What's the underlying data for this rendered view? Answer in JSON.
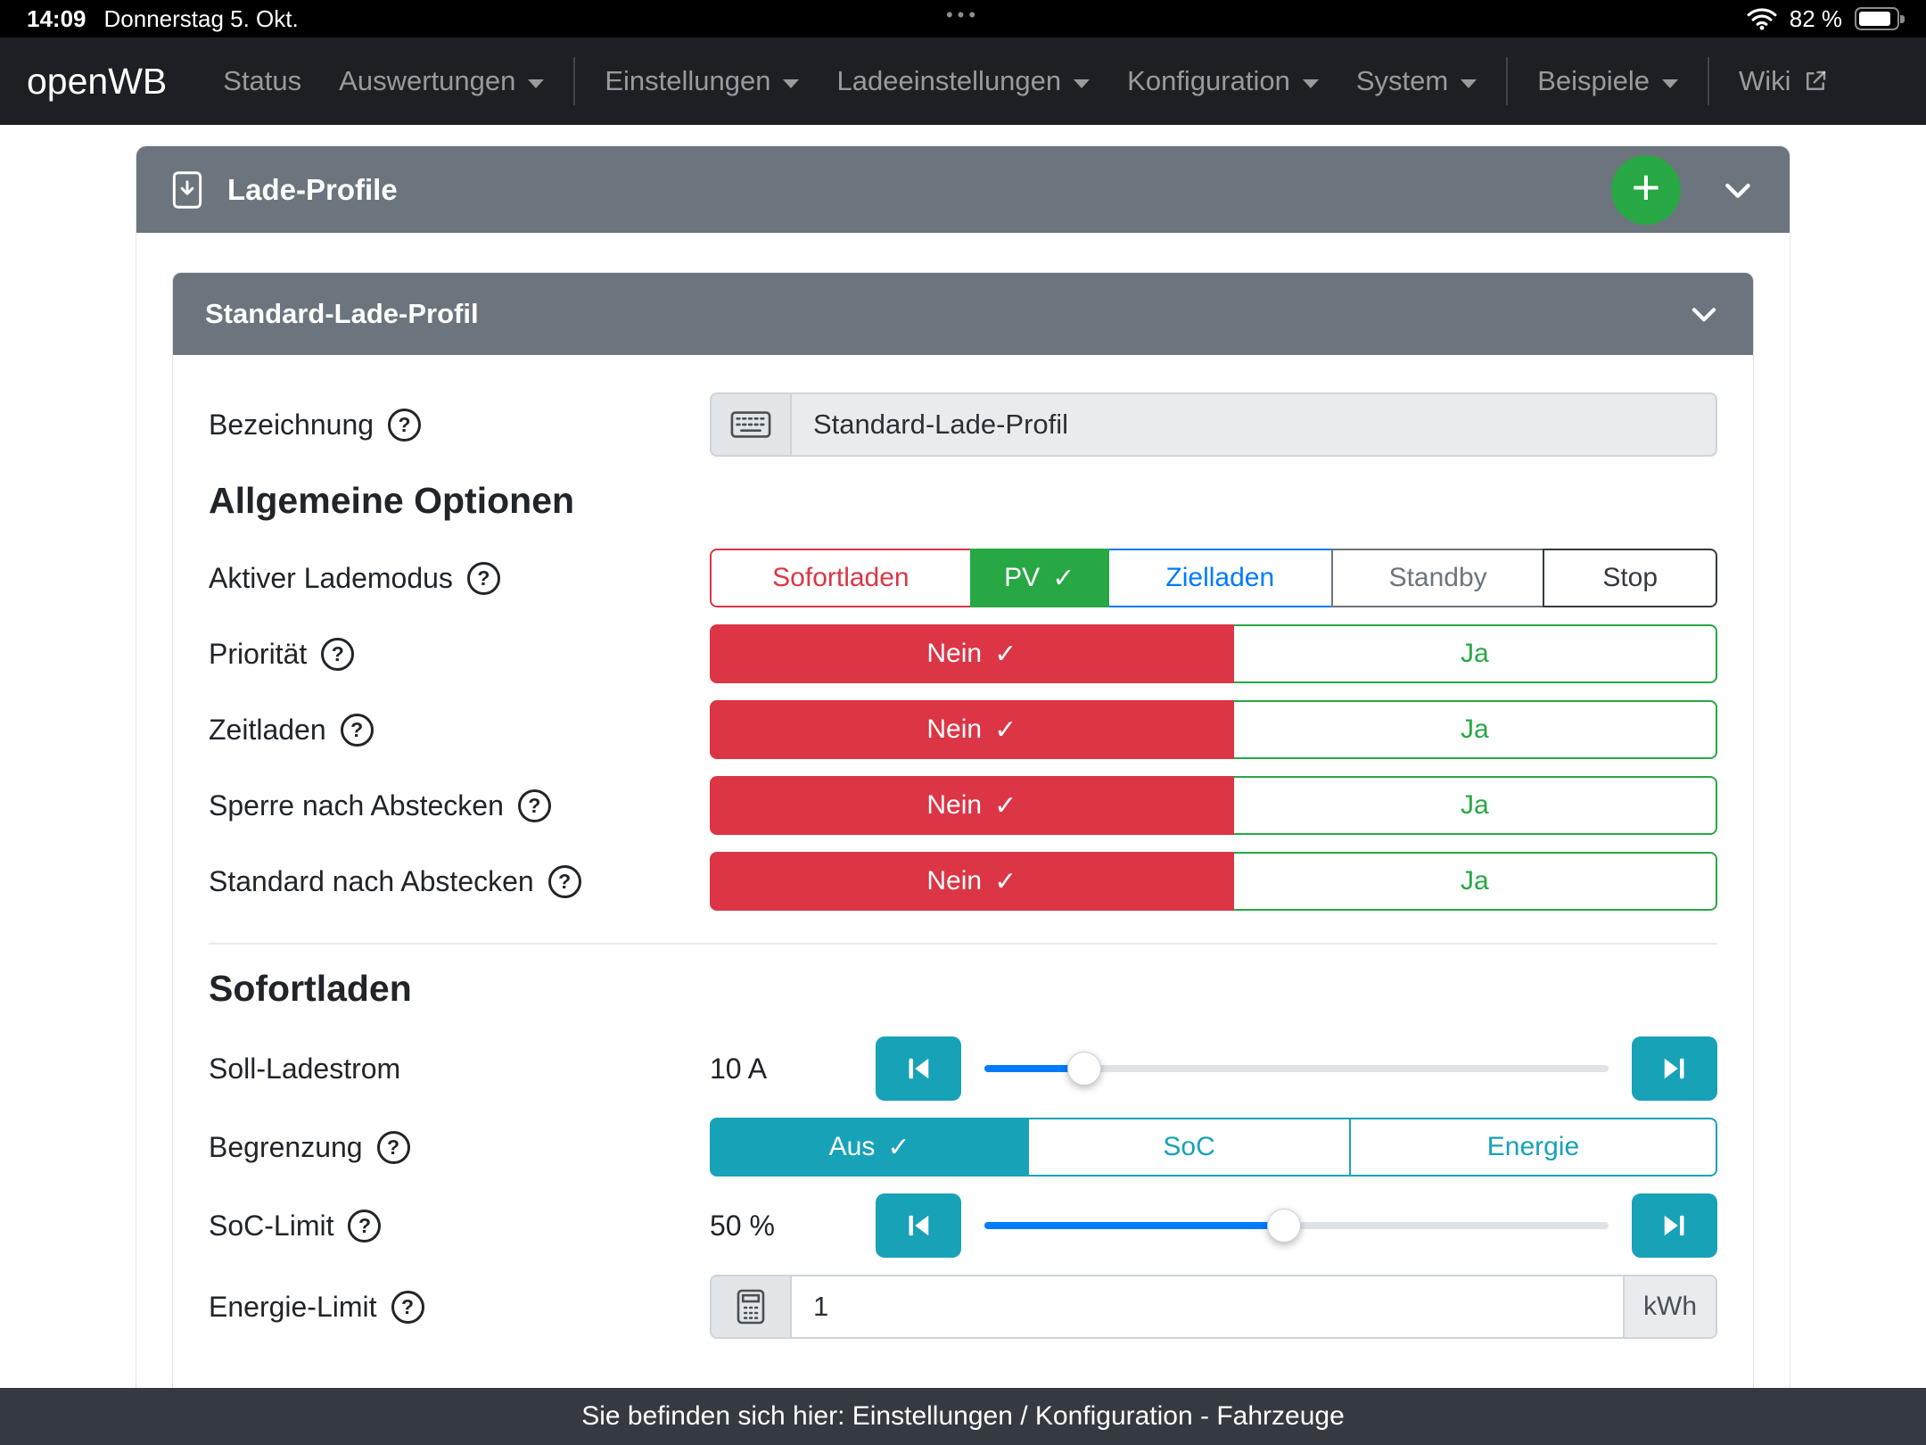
{
  "status_bar": {
    "time": "14:09",
    "date": "Donnerstag 5. Okt.",
    "dots": "•••",
    "battery_percent": "82 %"
  },
  "nav": {
    "brand": "openWB",
    "items": [
      {
        "label": "Status"
      },
      {
        "label": "Auswertungen"
      },
      {
        "label": "Einstellungen"
      },
      {
        "label": "Ladeeinstellungen"
      },
      {
        "label": "Konfiguration"
      },
      {
        "label": "System"
      },
      {
        "label": "Beispiele"
      },
      {
        "label": "Wiki"
      }
    ]
  },
  "card": {
    "title": "Lade-Profile"
  },
  "profile": {
    "title": "Standard-Lade-Profil"
  },
  "form": {
    "bezeichnung": {
      "label": "Bezeichnung",
      "value": "Standard-Lade-Profil"
    },
    "sections": {
      "allgemein": "Allgemeine Optionen",
      "sofortladen": "Sofortladen"
    },
    "lademodus": {
      "label": "Aktiver Lademodus",
      "selected": "PV",
      "options": [
        {
          "label": "Sofortladen"
        },
        {
          "label": "PV"
        },
        {
          "label": "Zielladen"
        },
        {
          "label": "Standby"
        },
        {
          "label": "Stop"
        }
      ]
    },
    "prioritaet": {
      "label": "Priorität",
      "no": "Nein",
      "yes": "Ja",
      "selected": "Nein"
    },
    "zeitladen": {
      "label": "Zeitladen",
      "no": "Nein",
      "yes": "Ja",
      "selected": "Nein"
    },
    "sperre_nach_abstecken": {
      "label": "Sperre nach Abstecken",
      "no": "Nein",
      "yes": "Ja",
      "selected": "Nein"
    },
    "standard_nach_abstecken": {
      "label": "Standard nach Abstecken",
      "no": "Nein",
      "yes": "Ja",
      "selected": "Nein"
    },
    "soll_ladestrom": {
      "label": "Soll-Ladestrom",
      "value": "10 A",
      "percent": 16
    },
    "begrenzung": {
      "label": "Begrenzung",
      "selected": "Aus",
      "options": [
        {
          "label": "Aus"
        },
        {
          "label": "SoC"
        },
        {
          "label": "Energie"
        }
      ]
    },
    "soc_limit": {
      "label": "SoC-Limit",
      "value": "50 %",
      "percent": 48
    },
    "energie_limit": {
      "label": "Energie-Limit",
      "value": "1",
      "unit": "kWh"
    }
  },
  "icons": {
    "plus": "+",
    "check": "✓",
    "help": "?"
  },
  "colors": {
    "danger": "#dc3545",
    "success": "#28a745",
    "primary": "#007bff",
    "info": "#17a2b8",
    "header_gray": "#6c757d",
    "navbar": "#1c1f23",
    "footer": "#343a40"
  },
  "footer": {
    "text": "Sie befinden sich hier: Einstellungen / Konfiguration - Fahrzeuge"
  }
}
